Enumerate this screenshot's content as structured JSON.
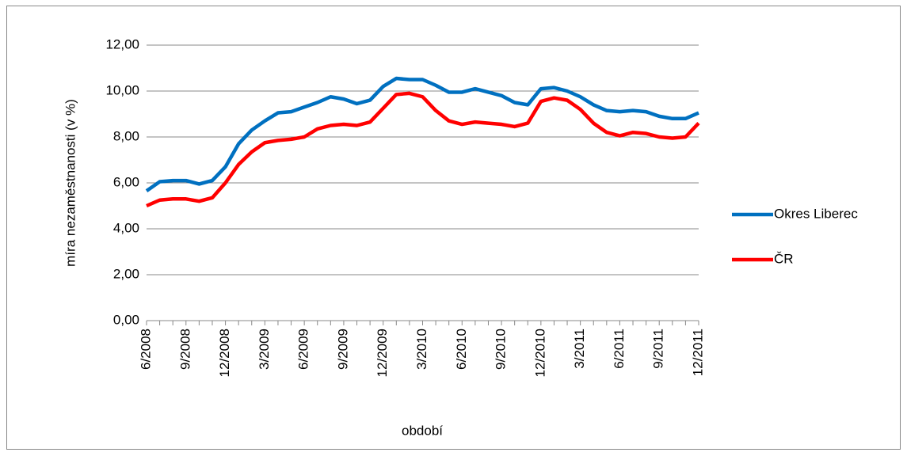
{
  "chart_data": {
    "type": "line",
    "y_label": "míra nezaměstnanosti (v %)",
    "x_label": "období",
    "categories": [
      "6/2008",
      null,
      null,
      "9/2008",
      null,
      null,
      "12/2008",
      null,
      null,
      "3/2009",
      null,
      null,
      "6/2009",
      null,
      null,
      "9/2009",
      null,
      null,
      "12/2009",
      null,
      null,
      "3/2010",
      null,
      null,
      "6/2010",
      null,
      null,
      "9/2010",
      null,
      null,
      "12/2010",
      null,
      null,
      "3/2011",
      null,
      null,
      "6/2011",
      null,
      null,
      "9/2011",
      null,
      null,
      "12/2011"
    ],
    "series": [
      {
        "name": "Okres Liberec",
        "color": "#0070c0",
        "values": [
          5.65,
          6.05,
          6.1,
          6.1,
          5.95,
          6.1,
          6.7,
          7.7,
          8.3,
          8.7,
          9.05,
          9.1,
          9.3,
          9.5,
          9.75,
          9.65,
          9.45,
          9.6,
          10.2,
          10.55,
          10.5,
          10.5,
          10.25,
          9.95,
          9.95,
          10.1,
          9.95,
          9.8,
          9.5,
          9.4,
          10.1,
          10.15,
          10.0,
          9.75,
          9.4,
          9.15,
          9.1,
          9.15,
          9.1,
          8.9,
          8.8,
          8.8,
          9.05
        ]
      },
      {
        "name": "ČR",
        "color": "#ff0000",
        "values": [
          5.0,
          5.25,
          5.3,
          5.3,
          5.2,
          5.35,
          6.0,
          6.8,
          7.35,
          7.75,
          7.85,
          7.9,
          8.0,
          8.35,
          8.5,
          8.55,
          8.5,
          8.65,
          9.25,
          9.85,
          9.9,
          9.75,
          9.15,
          8.7,
          8.55,
          8.65,
          8.6,
          8.55,
          8.45,
          8.6,
          9.55,
          9.7,
          9.6,
          9.2,
          8.6,
          8.2,
          8.05,
          8.2,
          8.15,
          8.0,
          7.95,
          8.0,
          8.6
        ]
      }
    ],
    "ylim": [
      0,
      12
    ],
    "yticks": [
      {
        "value": 0,
        "label": "0,00"
      },
      {
        "value": 2,
        "label": "2,00"
      },
      {
        "value": 4,
        "label": "4,00"
      },
      {
        "value": 6,
        "label": "6,00"
      },
      {
        "value": 8,
        "label": "8,00"
      },
      {
        "value": 10,
        "label": "10,00"
      },
      {
        "value": 12,
        "label": "12,00"
      }
    ],
    "grid": true,
    "legend": "right"
  }
}
